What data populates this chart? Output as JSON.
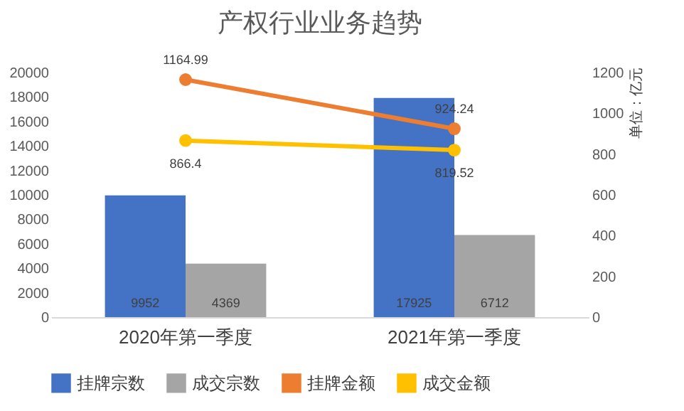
{
  "chart_data": {
    "type": "bar",
    "title": "产权行业业务趋势",
    "y2label": "单位：亿元",
    "categories": [
      "2020年第一季度",
      "2021年第一季度"
    ],
    "series": [
      {
        "name": "挂牌宗数",
        "color": "#4472c4",
        "values": [
          9952,
          17925
        ]
      },
      {
        "name": "成交宗数",
        "color": "#a5a5a5",
        "values": [
          4369,
          6712
        ]
      },
      {
        "name": "挂牌金额",
        "type": "line",
        "axis": "y2",
        "color": "#ed7d31",
        "values": [
          1164.99,
          924.24
        ]
      },
      {
        "name": "成交金额",
        "type": "line",
        "axis": "y2",
        "color": "#ffc000",
        "values": [
          866.4,
          819.52
        ]
      }
    ],
    "ylim": [
      0,
      20000
    ],
    "yticks": [
      0,
      2000,
      4000,
      6000,
      8000,
      10000,
      12000,
      14000,
      16000,
      18000,
      20000
    ],
    "y2lim": [
      0,
      1200
    ],
    "y2ticks": [
      0,
      200,
      400,
      600,
      800,
      1000,
      1200
    ],
    "data_labels": true,
    "grid": false,
    "legend": "bottom",
    "marker": "circle"
  }
}
